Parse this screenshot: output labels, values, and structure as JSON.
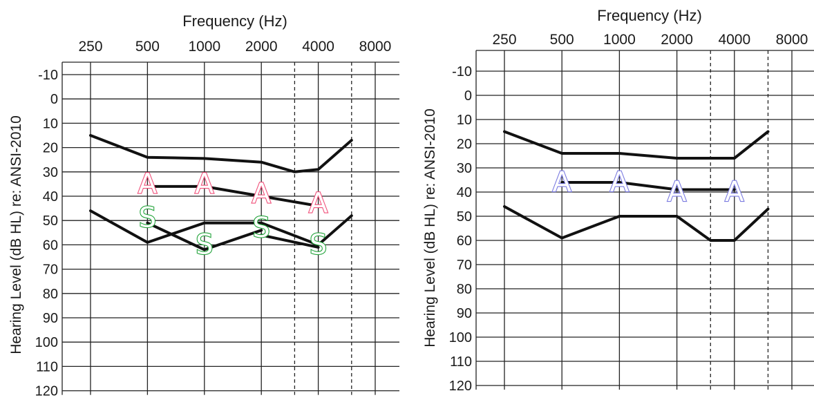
{
  "chart_data": [
    {
      "type": "line",
      "title": "Frequency (Hz)",
      "ylabel": "Hearing Level (dB HL) re: ANSI-2010",
      "x_ticks": [
        "250",
        "500",
        "1000",
        "2000",
        "4000",
        "8000"
      ],
      "y_ticks": [
        "-10",
        "0",
        "10",
        "20",
        "30",
        "40",
        "50",
        "60",
        "70",
        "80",
        "90",
        "100",
        "110",
        "120"
      ],
      "ylim": [
        120,
        -10
      ],
      "grid": true,
      "interoctave_dashed_hz": [
        3000,
        6000
      ],
      "boundary_lines": [
        {
          "points": [
            [
              250,
              15
            ],
            [
              500,
              24
            ],
            [
              1000,
              24.5
            ],
            [
              2000,
              26
            ],
            [
              3000,
              30
            ],
            [
              4000,
              29
            ],
            [
              6000,
              17
            ]
          ]
        },
        {
          "points": [
            [
              500,
              36
            ],
            [
              1000,
              36
            ],
            [
              2000,
              40
            ],
            [
              4000,
              44
            ]
          ]
        },
        {
          "points": [
            [
              250,
              46
            ],
            [
              500,
              59
            ],
            [
              1000,
              51
            ],
            [
              2000,
              51
            ],
            [
              4000,
              60
            ],
            [
              6000,
              48
            ]
          ]
        },
        {
          "points": [
            [
              500,
              51
            ],
            [
              1000,
              62
            ],
            [
              2000,
              54
            ]
          ]
        },
        {
          "points": [
            [
              2000,
              56
            ],
            [
              4000,
              61
            ]
          ]
        }
      ],
      "series": [
        {
          "marker": "A",
          "color": "#f0507a",
          "points": [
            [
              500,
              35
            ],
            [
              1000,
              35
            ],
            [
              2000,
              39
            ],
            [
              4000,
              43
            ]
          ]
        },
        {
          "marker": "S",
          "color": "#22a33a",
          "points": [
            [
              500,
              49
            ],
            [
              1000,
              60
            ],
            [
              2000,
              53
            ],
            [
              4000,
              60
            ]
          ]
        }
      ]
    },
    {
      "type": "line",
      "title": "Frequency (Hz)",
      "ylabel": "Hearing Level (dB HL) re: ANSI-2010",
      "x_ticks": [
        "250",
        "500",
        "1000",
        "2000",
        "4000",
        "8000"
      ],
      "y_ticks": [
        "-10",
        "0",
        "10",
        "20",
        "30",
        "40",
        "50",
        "60",
        "70",
        "80",
        "90",
        "100",
        "110",
        "120"
      ],
      "ylim": [
        120,
        -10
      ],
      "grid": true,
      "interoctave_dashed_hz": [
        3000,
        6000
      ],
      "boundary_lines": [
        {
          "points": [
            [
              250,
              15
            ],
            [
              500,
              24
            ],
            [
              1000,
              24
            ],
            [
              2000,
              26
            ],
            [
              3000,
              26
            ],
            [
              4000,
              26
            ],
            [
              6000,
              15
            ]
          ]
        },
        {
          "points": [
            [
              500,
              36
            ],
            [
              1000,
              36
            ],
            [
              2000,
              39
            ],
            [
              4000,
              39
            ]
          ]
        },
        {
          "points": [
            [
              250,
              46
            ],
            [
              500,
              59
            ],
            [
              1000,
              50
            ],
            [
              2000,
              50
            ],
            [
              3000,
              60
            ],
            [
              4000,
              60
            ],
            [
              6000,
              47
            ]
          ]
        }
      ],
      "series": [
        {
          "marker": "A",
          "color": "#7a7ae0",
          "points": [
            [
              500,
              36
            ],
            [
              1000,
              36
            ],
            [
              2000,
              40
            ],
            [
              4000,
              40
            ]
          ]
        }
      ]
    }
  ]
}
